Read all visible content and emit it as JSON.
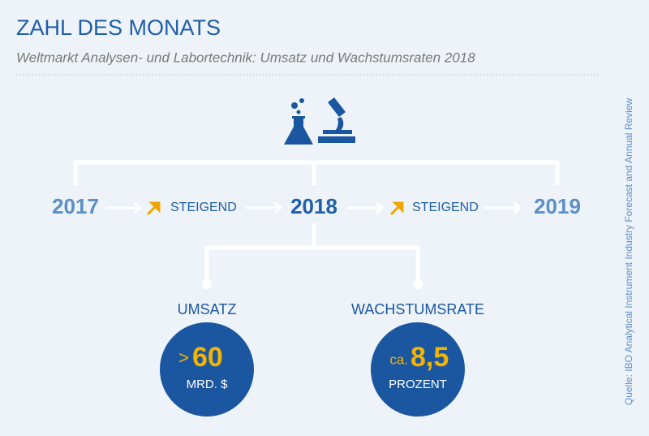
{
  "header": {
    "title": "ZAHL DES MONATS",
    "subtitle": "Weltmarkt Analysen- und Labortechnik: Umsatz und Wachstumsraten 2018"
  },
  "timeline": {
    "years": [
      "2017",
      "2018",
      "2019"
    ],
    "trends": [
      "STEIGEND",
      "STEIGEND"
    ]
  },
  "figures": [
    {
      "label": "UMSATZ",
      "prefix": ">",
      "value": "60",
      "unit": "MRD. $"
    },
    {
      "label": "WACHSTUMSRATE",
      "prefix": "ca.",
      "value": "8,5",
      "unit": "PROZENT"
    }
  ],
  "source": "Quelle: IBO Analytical Instrument Industry Forecast and Annual Review"
}
